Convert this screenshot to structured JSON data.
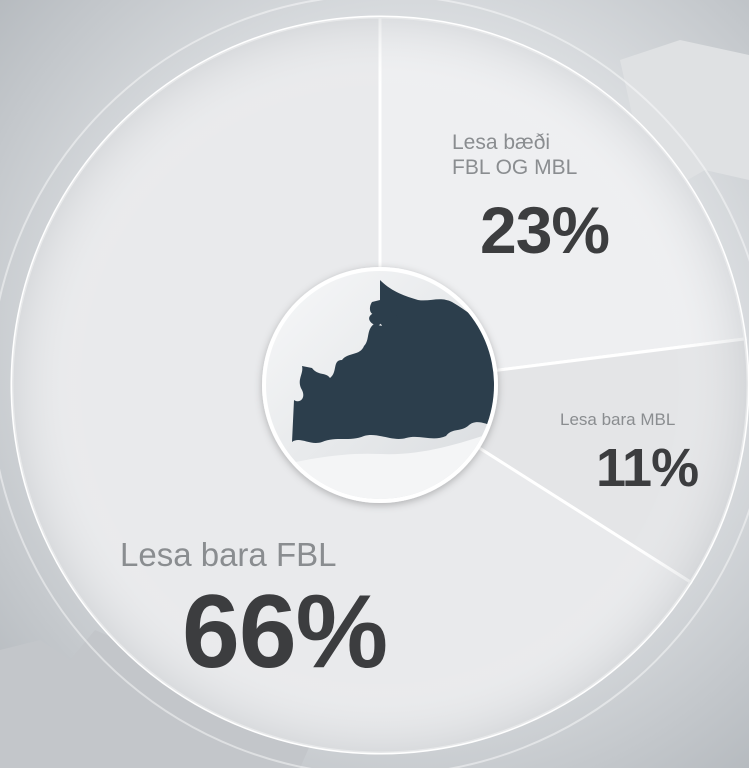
{
  "chart_data": {
    "type": "pie",
    "title": "",
    "slices": [
      {
        "label": "Lesa bæði\nFBL OG MBL",
        "value": 23,
        "value_label": "23%",
        "color": "#eeeff1"
      },
      {
        "label": "Lesa bara MBL",
        "value": 11,
        "value_label": "11%",
        "color": "#e4e5e7"
      },
      {
        "label": "Lesa bara FBL",
        "value": 66,
        "value_label": "66%",
        "color": "#e9eaec"
      }
    ],
    "center_icon": "iceland-map-icon",
    "accent_color": "#2c3e4c",
    "legend": "none"
  }
}
